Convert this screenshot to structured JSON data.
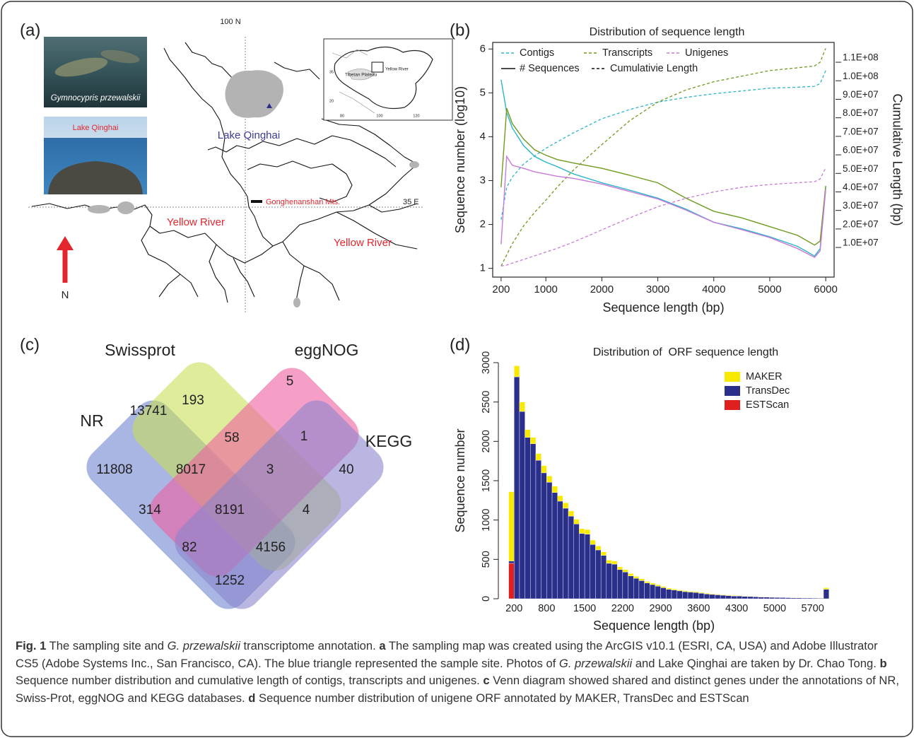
{
  "map": {
    "label": "(a)",
    "texts": [
      "Gymnocypris przewalskii",
      "Lake Qinghai",
      "100 N",
      "35 E",
      "Lake Qinghai",
      "Gonghenanshan Mts.",
      "Yellow River",
      "Yellow River",
      "N",
      "Tibetan Plateau",
      "Yellow River",
      "80",
      "100",
      "120",
      "35",
      "20"
    ]
  },
  "chart_data": [
    {
      "label": "(b)",
      "type": "line",
      "title": "Distribution of sequence length",
      "x_label": "Sequence length (bp)",
      "y_label": "Sequence number (log10)",
      "y2_label": "Cumulative Length (bp)",
      "x": [
        200,
        300,
        400,
        600,
        800,
        1000,
        1200,
        1500,
        2000,
        2500,
        3000,
        3500,
        4000,
        4500,
        5000,
        5500,
        5800,
        5900,
        6000
      ],
      "xlim": [
        50,
        6150
      ],
      "xticks": [
        200,
        1000,
        2000,
        3000,
        4000,
        5000,
        6000
      ],
      "ylim": [
        0.8,
        6.15
      ],
      "yticks": [
        1,
        2,
        3,
        4,
        5,
        6
      ],
      "y2lim": [
        -6000000,
        120700000
      ],
      "y2ticks": [
        {
          "value": 10000000,
          "label": "1.0E+07"
        },
        {
          "value": 20000000,
          "label": "2.0E+07"
        },
        {
          "value": 30000000,
          "label": "3.0E+07"
        },
        {
          "value": 40000000,
          "label": "4.0E+07"
        },
        {
          "value": 50000000,
          "label": "5.0E+07"
        },
        {
          "value": 60000000,
          "label": "6.0E+07"
        },
        {
          "value": 70000000,
          "label": "7.0E+07"
        },
        {
          "value": 80000000,
          "label": "8.0E+07"
        },
        {
          "value": 90000000,
          "label": "9.0E+07"
        },
        {
          "value": 100000000,
          "label": "1.0E+08"
        },
        {
          "value": 110000000,
          "label": "1.1E+08"
        }
      ],
      "legend": "top-left",
      "series": [
        {
          "name": "Contigs",
          "color": "#2bb5c9",
          "values": [
            5.3,
            4.55,
            4.2,
            3.8,
            3.55,
            3.42,
            3.32,
            3.15,
            2.95,
            2.78,
            2.6,
            2.35,
            2.05,
            1.9,
            1.72,
            1.5,
            1.28,
            1.45,
            2.85
          ],
          "cumulative": [
            25000000,
            42500000,
            48000000,
            55000000,
            59500000,
            63500000,
            67000000,
            72000000,
            79500000,
            84500000,
            88500000,
            91000000,
            93000000,
            94500000,
            96000000,
            96500000,
            97000000,
            98500000,
            105500000
          ]
        },
        {
          "name": "Transcripts",
          "color": "#6f9a1e",
          "values": [
            2.85,
            4.65,
            4.3,
            3.95,
            3.7,
            3.58,
            3.48,
            3.4,
            3.28,
            3.12,
            2.95,
            2.6,
            2.3,
            2.15,
            1.95,
            1.75,
            1.53,
            1.62,
            2.88
          ],
          "cumulative": [
            0,
            6000000,
            12000000,
            21500000,
            29000000,
            35500000,
            42500000,
            52000000,
            65500000,
            78500000,
            88500000,
            95000000,
            99500000,
            102500000,
            105500000,
            107000000,
            108000000,
            110000000,
            117500000
          ]
        },
        {
          "name": "Unigenes",
          "color": "#c77ad8",
          "values": [
            1.55,
            3.55,
            3.35,
            3.28,
            3.2,
            3.15,
            3.1,
            3.05,
            2.92,
            2.75,
            2.58,
            2.33,
            2.05,
            1.88,
            1.7,
            1.45,
            1.25,
            1.4,
            2.8
          ],
          "cumulative": [
            0,
            500000,
            1500000,
            3500000,
            5500000,
            7500000,
            9500000,
            13000000,
            19500000,
            26000000,
            32000000,
            36500000,
            40000000,
            42500000,
            44000000,
            45000000,
            45500000,
            47000000,
            53000000
          ]
        }
      ],
      "line_styles": [
        {
          "name": "# Sequences",
          "dash": "solid"
        },
        {
          "name": "Cumulativie Length",
          "dash": "dashed"
        }
      ]
    },
    {
      "label": "(d)",
      "type": "histogram",
      "title": "Distribution of  ORF sequence length",
      "x_label": "Sequence length (bp)",
      "y_label": "Sequence number",
      "stacked": true,
      "legend": "top-right",
      "bins": [
        100,
        200,
        300,
        400,
        500,
        600,
        700,
        800,
        900,
        1000,
        1100,
        1200,
        1300,
        1400,
        1500,
        1600,
        1700,
        1800,
        1900,
        2000,
        2100,
        2200,
        2300,
        2400,
        2500,
        2600,
        2700,
        2800,
        2900,
        3000,
        3100,
        3200,
        3300,
        3400,
        3500,
        3600,
        3700,
        3800,
        3900,
        4000,
        4100,
        4200,
        4300,
        4400,
        4500,
        4600,
        4700,
        4800,
        4900,
        5000,
        5100,
        5200,
        5300,
        5400,
        5500,
        5600,
        5700,
        5800,
        5900,
        6000
      ],
      "xlim": [
        -90,
        6030
      ],
      "xticks": [
        200,
        800,
        1500,
        2200,
        2900,
        3600,
        4300,
        5000,
        5700
      ],
      "ylim": [
        -70,
        3000
      ],
      "yticks": [
        0,
        500,
        1000,
        1500,
        2000,
        2500,
        3000
      ],
      "series": [
        {
          "name": "MAKER",
          "color": "#f7ea00",
          "values": [
            880,
            140,
            120,
            100,
            80,
            85,
            90,
            80,
            80,
            70,
            70,
            65,
            60,
            60,
            60,
            55,
            50,
            45,
            40,
            40,
            35,
            30,
            30,
            25,
            25,
            20,
            20,
            18,
            16,
            15,
            14,
            12,
            12,
            10,
            10,
            10,
            9,
            8,
            8,
            7,
            7,
            6,
            6,
            5,
            5,
            5,
            4,
            4,
            4,
            3,
            3,
            3,
            3,
            2,
            2,
            2,
            2,
            2,
            20
          ]
        },
        {
          "name": "TransDec",
          "color": "#2b2f8c",
          "values": [
            30,
            2820,
            2380,
            2050,
            1970,
            1760,
            1600,
            1480,
            1350,
            1240,
            1150,
            1050,
            950,
            830,
            820,
            690,
            620,
            550,
            450,
            440,
            370,
            340,
            290,
            260,
            230,
            200,
            180,
            160,
            140,
            120,
            110,
            100,
            90,
            85,
            80,
            70,
            60,
            55,
            50,
            45,
            40,
            35,
            35,
            30,
            28,
            25,
            22,
            20,
            18,
            16,
            15,
            14,
            12,
            12,
            10,
            10,
            9,
            8,
            120
          ]
        },
        {
          "name": "ESTScan",
          "color": "#e0201e",
          "values": [
            450,
            0,
            0,
            0,
            0,
            0,
            0,
            0,
            0,
            0,
            0,
            0,
            0,
            0,
            0,
            0,
            0,
            0,
            0,
            0,
            0,
            0,
            0,
            0,
            0,
            0,
            0,
            0,
            0,
            0,
            0,
            0,
            0,
            0,
            0,
            0,
            0,
            0,
            0,
            0,
            0,
            0,
            0,
            0,
            0,
            0,
            0,
            0,
            0,
            0,
            0,
            0,
            0,
            0,
            0,
            0,
            0,
            0,
            0
          ]
        }
      ]
    }
  ],
  "venn": {
    "label": "(c)",
    "sets": [
      {
        "name": "NR",
        "color": "#6f84cf"
      },
      {
        "name": "Swissprot",
        "color": "#c8e05a"
      },
      {
        "name": "eggNOG",
        "color": "#ee5fa0"
      },
      {
        "name": "KEGG",
        "color": "#8a86cf"
      }
    ],
    "counts": [
      193,
      5,
      13741,
      58,
      1,
      11808,
      8017,
      3,
      40,
      314,
      8191,
      4,
      82,
      4156,
      1252
    ]
  },
  "caption": {
    "label": "Fig. 1",
    "segments": [
      {
        "text": " The sampling site and "
      },
      {
        "text": "G. przewalskii",
        "format": "italic"
      },
      {
        "text": " transcriptome annotation. "
      },
      {
        "text": "a",
        "format": "bold"
      },
      {
        "text": " The sampling map was created using the ArcGIS v10.1 (ESRI, CA, USA) and Adobe Illustrator CS5 (Adobe Systems Inc., San Francisco, CA). The blue triangle represented the sample site. Photos of "
      },
      {
        "text": "G. przewalskii",
        "format": "italic"
      },
      {
        "text": " and Lake Qinghai are taken by Dr. Chao Tong. "
      },
      {
        "text": "b",
        "format": "bold"
      },
      {
        "text": " Sequence number distribution and cumulative length of contigs, transcripts and unigenes. "
      },
      {
        "text": "c",
        "format": "bold"
      },
      {
        "text": " Venn diagram showed shared and distinct genes under the annotations of NR, Swiss-Prot, eggNOG and KEGG databases. "
      },
      {
        "text": "d",
        "format": "bold"
      },
      {
        "text": " Sequence number distribution of unigene ORF annotated by MAKER, TransDec and ESTScan"
      }
    ]
  }
}
